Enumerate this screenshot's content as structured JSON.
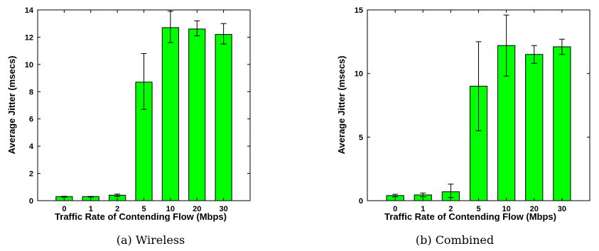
{
  "bar_color": "#00ff00",
  "chart_data": [
    {
      "type": "bar",
      "caption": "(a) Wireless",
      "categories": [
        "0",
        "1",
        "2",
        "5",
        "10",
        "20",
        "30"
      ],
      "values": [
        0.3,
        0.3,
        0.4,
        8.7,
        12.7,
        12.6,
        12.2
      ],
      "error_low": [
        0.25,
        0.26,
        0.3,
        6.7,
        11.6,
        12.1,
        11.5
      ],
      "error_high": [
        0.32,
        0.31,
        0.48,
        10.8,
        13.9,
        13.2,
        13.0
      ],
      "xlabel": "Traffic Rate of Contending Flow (Mbps)",
      "ylabel": "Average Jitter (msecs)",
      "ylim": [
        0,
        14
      ],
      "yticks": [
        0,
        2,
        4,
        6,
        8,
        10,
        12,
        14
      ]
    },
    {
      "type": "bar",
      "caption": "(b) Combined",
      "categories": [
        "0",
        "1",
        "2",
        "5",
        "10",
        "20",
        "30"
      ],
      "values": [
        0.4,
        0.45,
        0.7,
        9.0,
        12.2,
        11.5,
        12.1
      ],
      "error_low": [
        0.3,
        0.3,
        0.25,
        5.5,
        9.8,
        10.8,
        11.5
      ],
      "error_high": [
        0.5,
        0.6,
        1.3,
        12.5,
        14.6,
        12.2,
        12.7
      ],
      "xlabel": "Traffic Rate of Contending Flow (Mbps)",
      "ylabel": "Average Jitter (msecs)",
      "ylim": [
        0,
        15
      ],
      "yticks": [
        0,
        5,
        10,
        15
      ]
    }
  ]
}
